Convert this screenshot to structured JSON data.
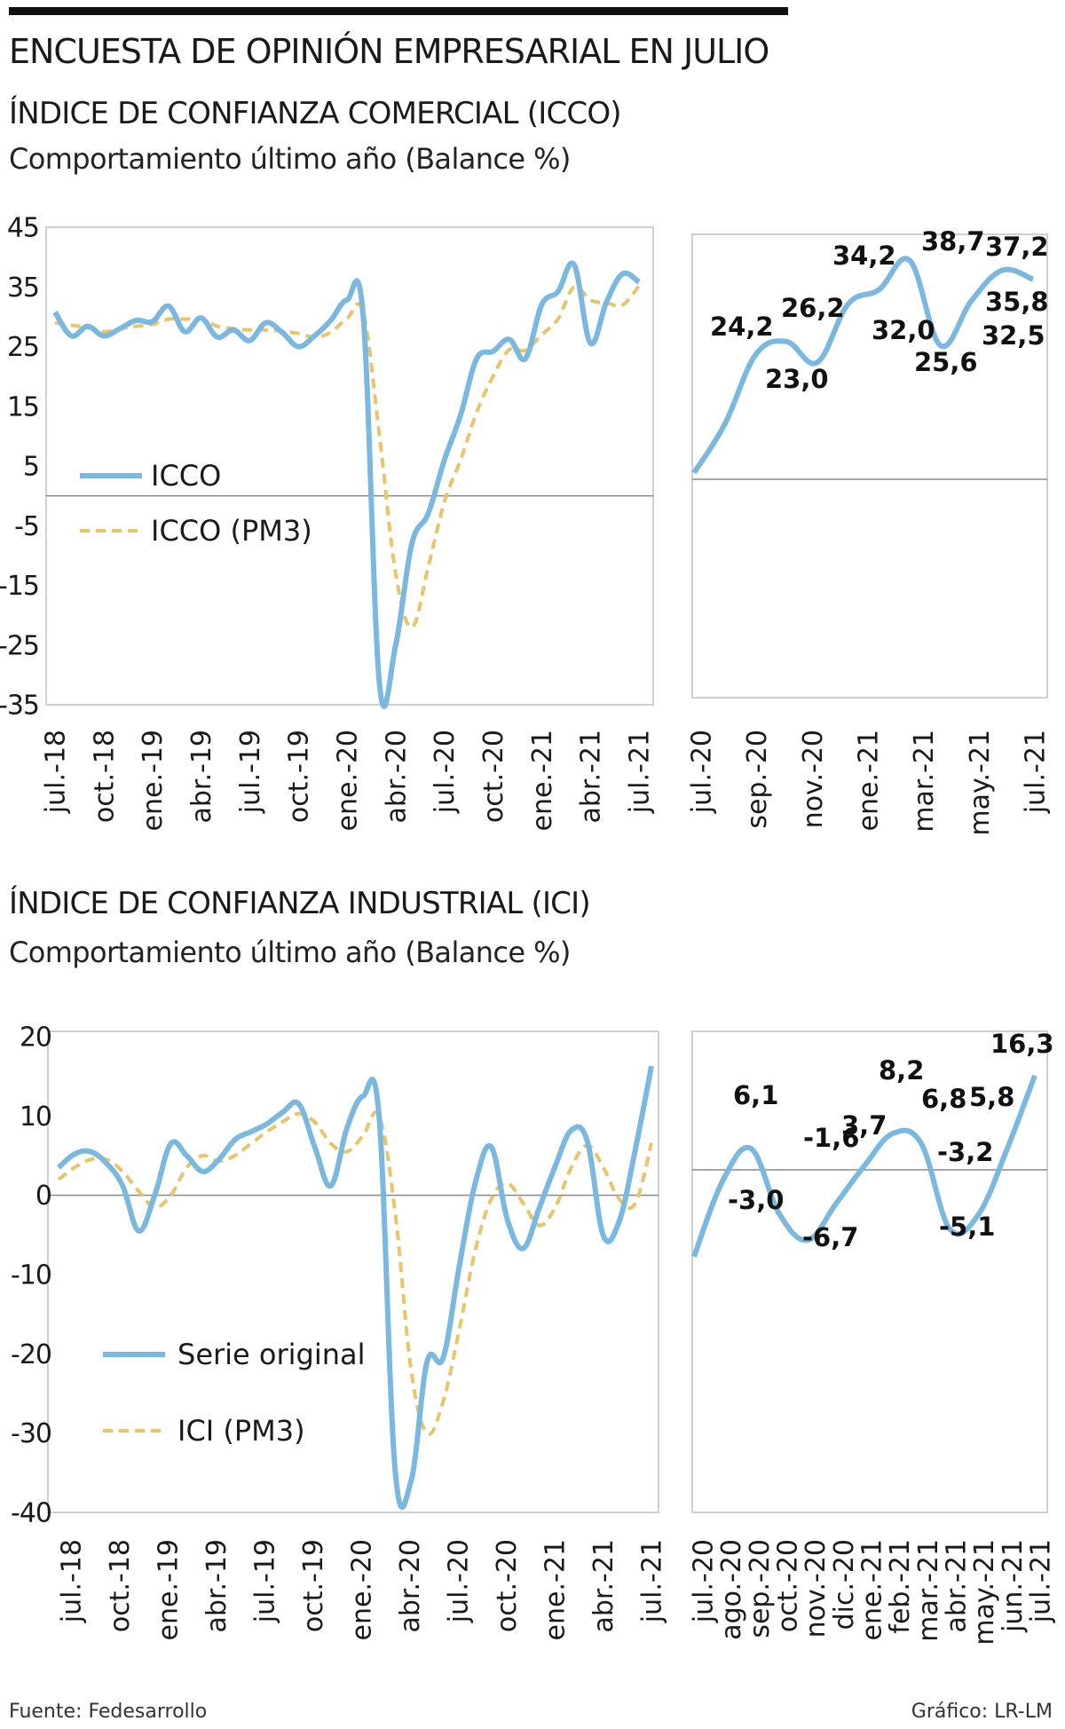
{
  "header": {
    "title": "ENCUESTA DE OPINIÓN EMPRESARIAL EN JULIO",
    "icco_subtitle": "ÍNDICE DE CONFIANZA COMERCIAL (ICCO)",
    "icco_note": "Comportamiento último año  (Balance %)",
    "ici_subtitle": "ÍNDICE DE CONFIANZA INDUSTRIAL (ICI)",
    "ici_note": "Comportamiento último año   (Balance %)"
  },
  "footer": {
    "source": "Fuente: Fedesarrollo",
    "credit": "Gráfico: LR-LM"
  },
  "colors": {
    "series": "#7ab8e0",
    "avg": "#e8c46a",
    "frame": "#cfcfcf",
    "zero": "#888888",
    "text": "#1a1a1a"
  },
  "chart_data": [
    {
      "id": "icco_long",
      "type": "line",
      "title": "ÍNDICE DE CONFIANZA COMERCIAL (ICCO)",
      "ylim": [
        -35,
        45
      ],
      "yticks": [
        45,
        35,
        25,
        15,
        5,
        -5,
        -15,
        -25,
        -35
      ],
      "tick_labels": [
        "jul.-18",
        "oct.-18",
        "ene.-19",
        "abr.-19",
        "jul.-19",
        "oct.-19",
        "ene.-20",
        "abr.-20",
        "jul.-20",
        "oct.-20",
        "ene.-21",
        "abr.-21",
        "jul.-21"
      ],
      "legend": [
        "ICCO",
        "ICCO (PM3)"
      ],
      "series": [
        {
          "name": "ICCO",
          "values": [
            30.8,
            26.8,
            28.4,
            26.8,
            28.0,
            29.4,
            29.2,
            31.8,
            27.5,
            29.8,
            26.6,
            27.8,
            26.0,
            29.0,
            27.4,
            25.0,
            26.8,
            29.4,
            32.8,
            30.0,
            -31.5,
            -25.0,
            -8.0,
            -3.0,
            6.0,
            13.5,
            23.0,
            24.2,
            26.2,
            23.0,
            32.0,
            34.2,
            38.7,
            25.6,
            32.5,
            37.2,
            35.8
          ]
        },
        {
          "name": "ICCO (PM3)",
          "values": [
            29.0,
            28.6,
            28.2,
            27.5,
            28.0,
            28.4,
            28.7,
            29.6,
            29.6,
            29.7,
            28.4,
            28.0,
            27.8,
            27.8,
            27.6,
            27.2,
            26.6,
            27.4,
            29.7,
            30.7,
            10.0,
            -13.0,
            -22.0,
            -12.0,
            -1.0,
            6.0,
            14.0,
            20.0,
            24.5,
            24.4,
            27.0,
            29.6,
            35.0,
            32.8,
            32.3,
            32.0,
            35.2
          ]
        }
      ]
    },
    {
      "id": "icco_zoom",
      "type": "line",
      "ylim": [
        -35,
        45
      ],
      "tick_labels": [
        "jul.-20",
        "sep.-20",
        "nov.-20",
        "ene.-21",
        "mar.-21",
        "may.-21",
        "jul.-21"
      ],
      "series": [
        {
          "name": "ICCO",
          "values": [
            6.0,
            13.5,
            24.2,
            26.2,
            23.0,
            32.0,
            34.2,
            38.7,
            25.6,
            32.5,
            37.2,
            35.8
          ]
        }
      ],
      "annotations": [
        "24,2",
        "26,2",
        "23,0",
        "34,2",
        "32,0",
        "38,7",
        "25,6",
        "37,2",
        "35,8",
        "32,5"
      ]
    },
    {
      "id": "ici_long",
      "type": "line",
      "title": "ÍNDICE DE CONFIANZA INDUSTRIAL (ICI)",
      "ylim": [
        -40,
        20
      ],
      "yticks": [
        20,
        10,
        0,
        -10,
        -20,
        -30,
        -40
      ],
      "tick_labels": [
        "jul.-18",
        "oct.-18",
        "ene.-19",
        "abr.-19",
        "jul.-19",
        "oct.-19",
        "ene.-20",
        "abr.-20",
        "jul.-20",
        "oct.-20",
        "ene.-21",
        "abr.-21",
        "jul.-21"
      ],
      "legend": [
        "Serie original",
        "ICI (PM3)"
      ],
      "series": [
        {
          "name": "Serie original",
          "values": [
            3.5,
            5.2,
            5.5,
            4.0,
            1.2,
            -4.5,
            0.0,
            6.5,
            5.0,
            3.0,
            4.5,
            7.0,
            8.0,
            9.0,
            10.5,
            11.5,
            6.0,
            1.2,
            8.5,
            12.5,
            10.0,
            -34.5,
            -36.0,
            -21.0,
            -20.5,
            -9.0,
            1.5,
            6.1,
            -3.0,
            -6.7,
            -1.6,
            3.7,
            8.2,
            6.8,
            -5.1,
            -3.2,
            5.8,
            16.3
          ]
        },
        {
          "name": "ICI (PM3)",
          "values": [
            2.0,
            3.5,
            4.5,
            4.5,
            3.0,
            0.5,
            -1.5,
            0.0,
            3.5,
            5.0,
            4.3,
            5.0,
            6.5,
            8.0,
            9.3,
            10.3,
            9.2,
            6.5,
            5.5,
            7.5,
            10.0,
            -2.0,
            -22.0,
            -30.0,
            -26.0,
            -17.0,
            -7.0,
            -0.5,
            1.5,
            -1.0,
            -3.8,
            -1.5,
            3.5,
            6.3,
            3.5,
            -0.5,
            -1.0,
            6.6
          ]
        }
      ]
    },
    {
      "id": "ici_zoom",
      "type": "line",
      "ylim": [
        -12,
        19
      ],
      "tick_labels": [
        "jul.-20",
        "ago.-20",
        "sep.-20",
        "oct.-20",
        "nov.-20",
        "dic.-20",
        "ene.-21",
        "feb.-21",
        "mar.-21",
        "abr.-21",
        "may.-21",
        "jun.-21",
        "jul.-21"
      ],
      "series": [
        {
          "name": "ICI",
          "values": [
            -9.0,
            1.5,
            6.1,
            -3.0,
            -6.7,
            -1.6,
            3.7,
            8.2,
            6.8,
            -5.1,
            -3.2,
            5.8,
            16.3
          ]
        }
      ],
      "annotations": [
        "6,1",
        "-3,0",
        "-1,6",
        "-6,7",
        "3,7",
        "8,2",
        "6,8",
        "-3,2",
        "5,8",
        "-5,1",
        "16,3"
      ]
    }
  ]
}
